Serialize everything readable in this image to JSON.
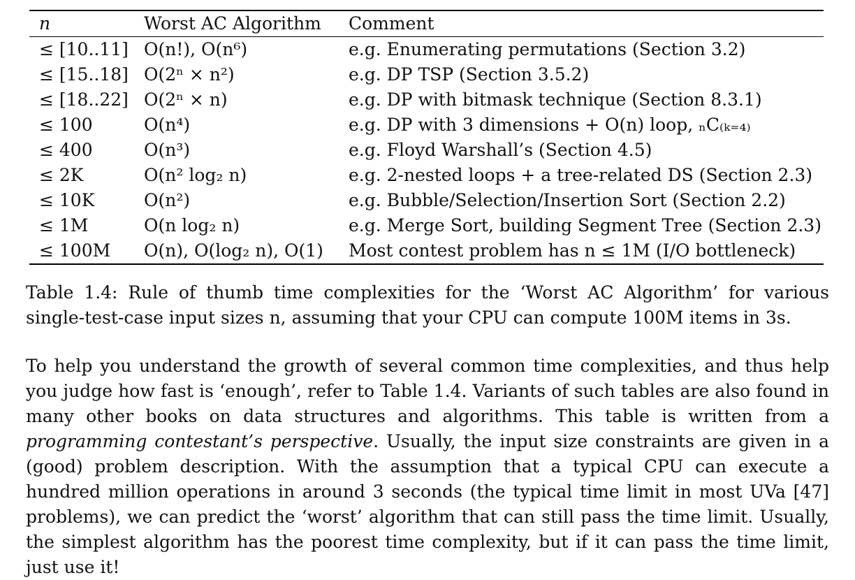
{
  "table": {
    "headers": [
      "n",
      "Worst AC Algorithm",
      "Comment"
    ],
    "rows": [
      {
        "n": "≤ [10..11]",
        "algo": "O(n!), O(n⁶)",
        "comment": "e.g. Enumerating permutations (Section 3.2)"
      },
      {
        "n": "≤ [15..18]",
        "algo": "O(2ⁿ × n²)",
        "comment": "e.g. DP TSP (Section 3.5.2)"
      },
      {
        "n": "≤ [18..22]",
        "algo": "O(2ⁿ × n)",
        "comment": "e.g. DP with bitmask technique (Section 8.3.1)"
      },
      {
        "n": "≤ 100",
        "algo": "O(n⁴)",
        "comment": "e.g. DP with 3 dimensions + O(n) loop, ₙC₍ₖ₌₄₎"
      },
      {
        "n": "≤ 400",
        "algo": "O(n³)",
        "comment": "e.g. Floyd Warshall’s (Section 4.5)"
      },
      {
        "n": "≤ 2K",
        "algo": "O(n² log₂ n)",
        "comment": "e.g. 2-nested loops + a tree-related DS (Section 2.3)"
      },
      {
        "n": "≤ 10K",
        "algo": "O(n²)",
        "comment": "e.g. Bubble/Selection/Insertion Sort (Section 2.2)"
      },
      {
        "n": "≤ 1M",
        "algo": "O(n log₂ n)",
        "comment": "e.g. Merge Sort, building Segment Tree (Section 2.3)"
      },
      {
        "n": "≤ 100M",
        "algo": "O(n), O(log₂ n), O(1)",
        "comment": "Most contest problem has n ≤ 1M (I/O bottleneck)"
      }
    ]
  },
  "caption": "Table 1.4: Rule of thumb time complexities for the ‘Worst AC Algorithm’ for various single-test-case input sizes n, assuming that your CPU can compute 100M items in 3s.",
  "paragraph": {
    "part1": "To help you understand the growth of several common time complexities, and thus help you judge how fast is ‘enough’, refer to Table 1.4. Variants of such tables are also found in many other books on data structures and algorithms. This table is written from a ",
    "emphasis": "programming contestant’s perspective",
    "part2": ". Usually, the input size constraints are given in a (good) problem description. With the assumption that a typical CPU can execute a hundred million operations in around 3 seconds (the typical time limit in most UVa [47] problems), we can predict the ‘worst’ algorithm that can still pass the time limit. Usually, the simplest algorithm has the poorest time complexity, but if it can pass the time limit, just use it!"
  }
}
